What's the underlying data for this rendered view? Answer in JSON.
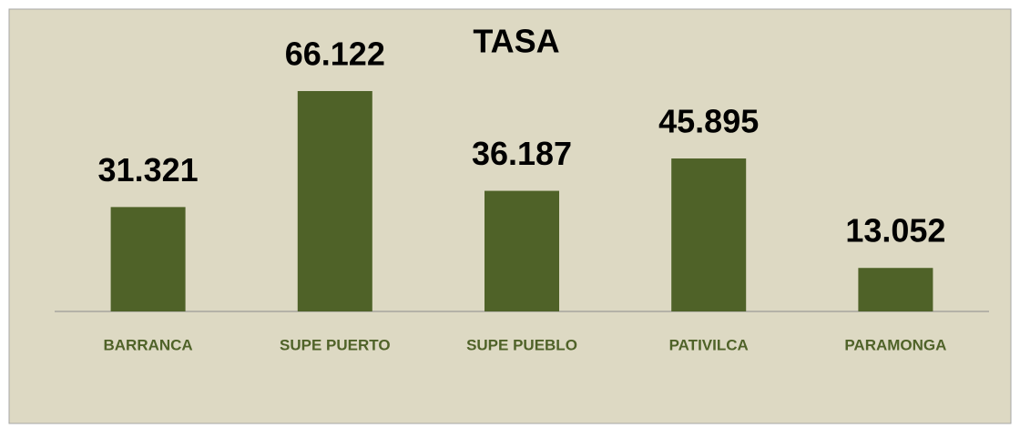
{
  "chart_data": {
    "type": "bar",
    "title": "TASA",
    "categories": [
      "BARRANCA",
      "SUPE PUERTO",
      "SUPE PUEBLO",
      "PATIVILCA",
      "PARAMONGA"
    ],
    "values": [
      31.321,
      66.122,
      36.187,
      45.895,
      13.052
    ],
    "color": "#4f6228"
  }
}
